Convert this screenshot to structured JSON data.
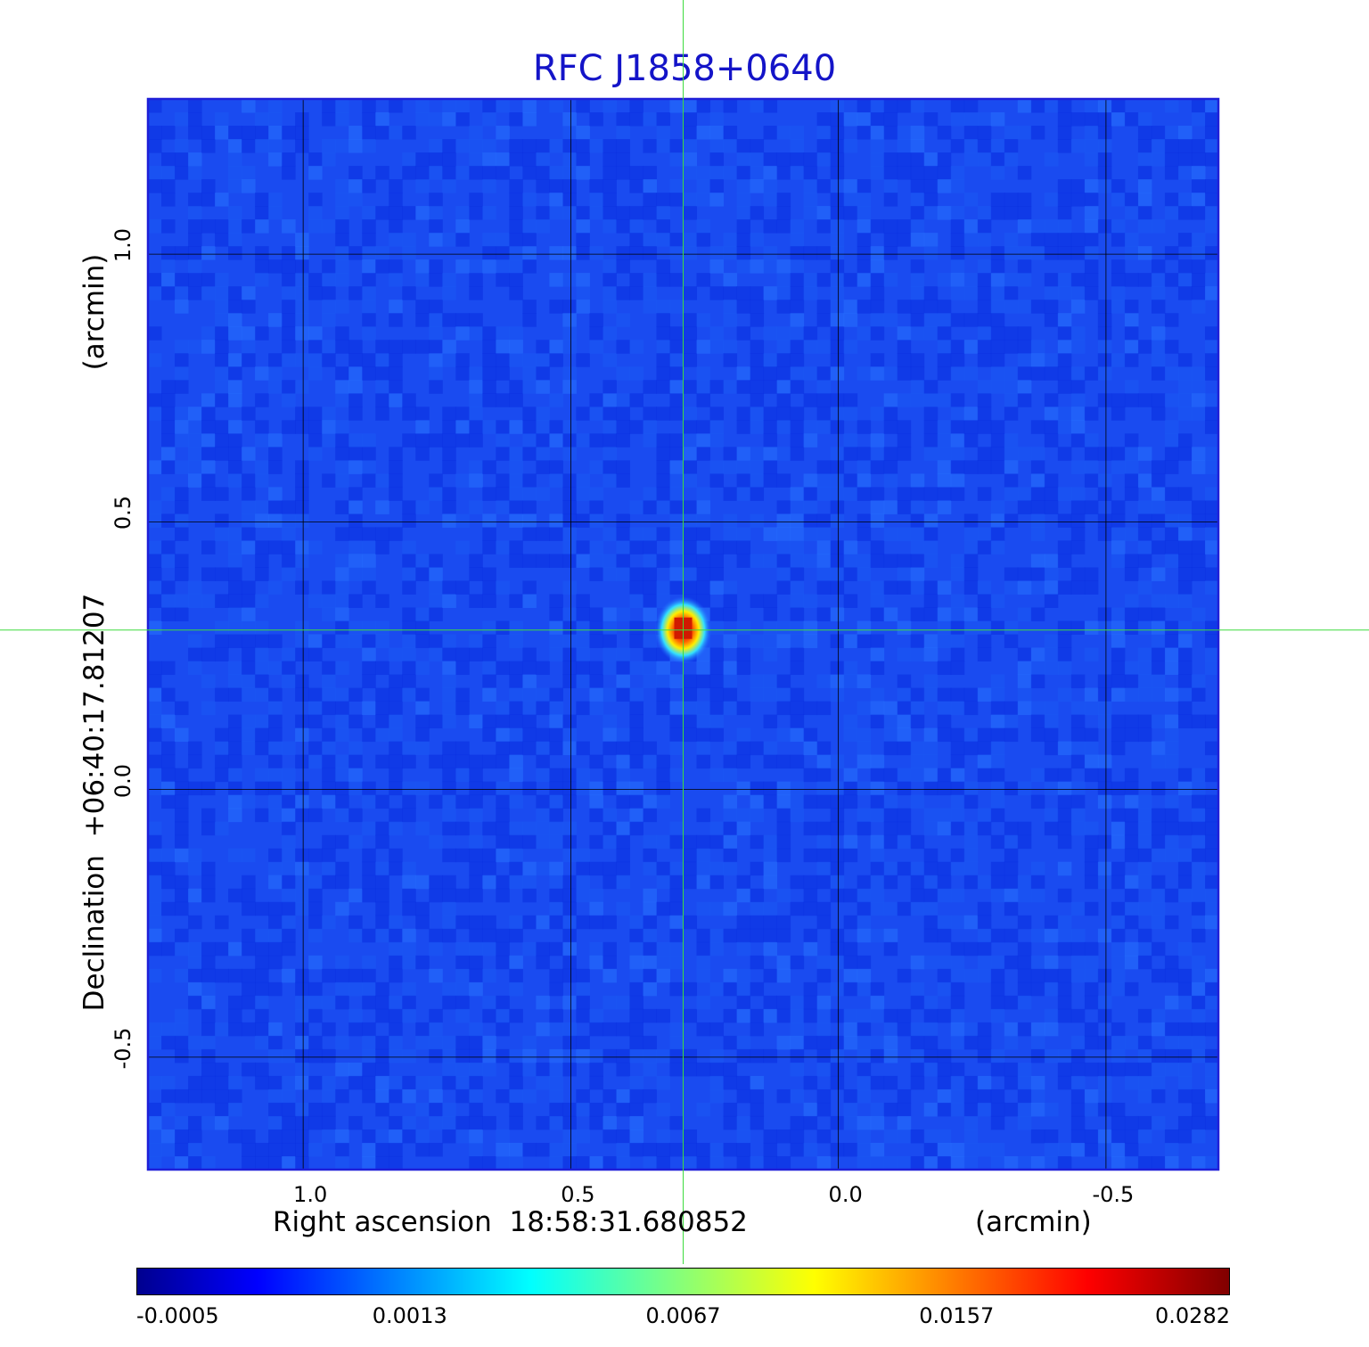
{
  "chart_data": {
    "type": "heatmap",
    "title": "RFC J1858+0640",
    "xlabel": "Right ascension  18:58:31.680852",
    "xunit": "(arcmin)",
    "ylabel": "Declination  +06:40:17.81207",
    "yunit": "(arcmin)",
    "xlim": [
      1.29,
      -0.71
    ],
    "ylim": [
      -0.71,
      1.29
    ],
    "xticks": [
      {
        "value": 1.0,
        "label": "1.0"
      },
      {
        "value": 0.5,
        "label": "0.5"
      },
      {
        "value": 0.0,
        "label": "0.0"
      },
      {
        "value": -0.5,
        "label": "-0.5"
      }
    ],
    "yticks": [
      {
        "value": 1.0,
        "label": "1.0"
      },
      {
        "value": 0.5,
        "label": "0.5"
      },
      {
        "value": 0.0,
        "label": "0.0"
      },
      {
        "value": -0.5,
        "label": "-0.5"
      }
    ],
    "grid": true,
    "crosshair": {
      "x": 0.29,
      "y": 0.298,
      "color": "#3ddc3d"
    },
    "source": {
      "x": 0.29,
      "y": 0.298,
      "peak": 0.0282
    },
    "colorbar": {
      "tick_labels": [
        "-0.0005",
        "0.0013",
        "0.0067",
        "0.0157",
        "0.0282"
      ],
      "colormap": "jet"
    },
    "colors": {
      "title": "#1414c8",
      "background_noise": "#1a4bf0",
      "frame": "#1f1fd8",
      "grid": "#000000"
    }
  }
}
